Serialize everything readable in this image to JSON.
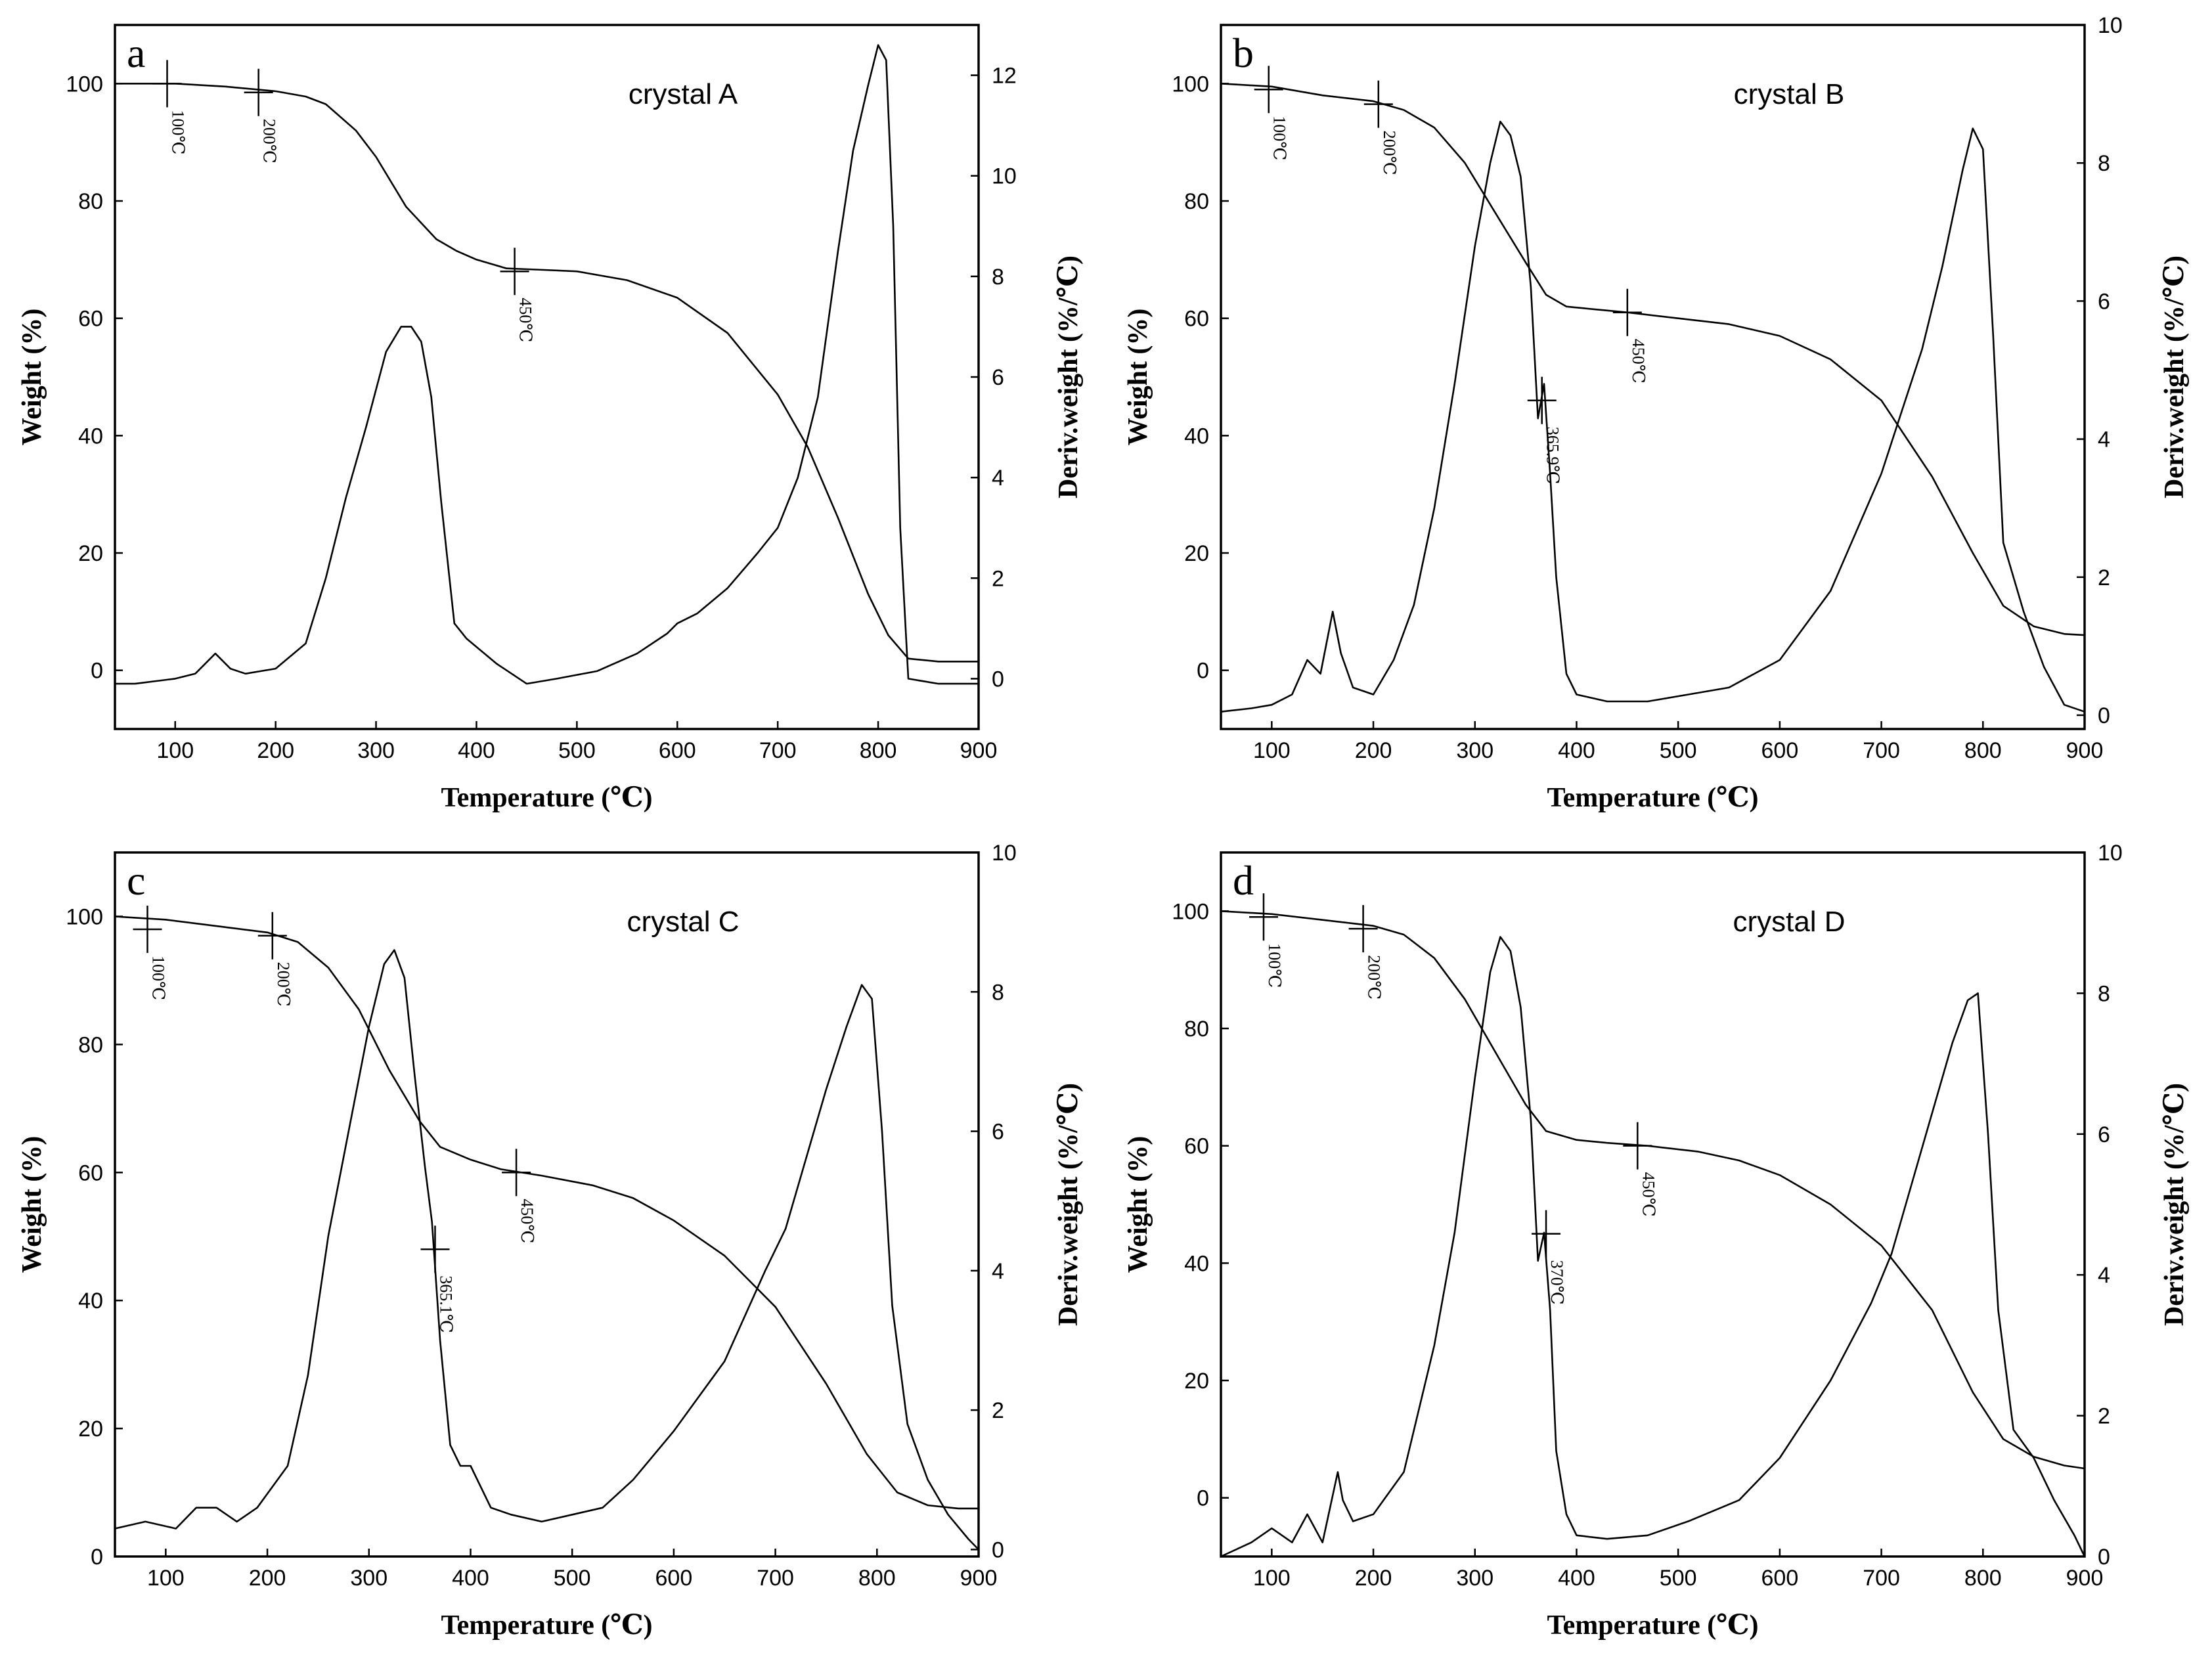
{
  "chart_data": [
    {
      "type": "line",
      "panel": "a",
      "label": "crystal A",
      "xlabel": "Temperature (℃)",
      "ylabel": "Weight (%)",
      "y2label": "Deriv.weight (%/℃)",
      "xlim": [
        40,
        900
      ],
      "ylim": [
        -10,
        110
      ],
      "y2lim": [
        -1,
        13
      ],
      "xticks": [
        100,
        200,
        300,
        400,
        500,
        600,
        700,
        800,
        900
      ],
      "yticks": [
        0,
        20,
        40,
        60,
        80,
        100
      ],
      "y2ticks": [
        0,
        2,
        4,
        6,
        8,
        10,
        12
      ],
      "annotations": [
        {
          "x": 92,
          "y": 100,
          "label": "100℃"
        },
        {
          "x": 183,
          "y": 98.5,
          "label": "200℃"
        },
        {
          "x": 438,
          "y": 68,
          "label": "450℃"
        }
      ],
      "series": [
        {
          "name": "Weight",
          "axis": "left",
          "x": [
            40,
            100,
            150,
            200,
            230,
            250,
            280,
            300,
            330,
            360,
            380,
            400,
            430,
            460,
            500,
            550,
            600,
            650,
            700,
            730,
            760,
            790,
            810,
            830,
            860,
            900
          ],
          "y": [
            100,
            100,
            99.5,
            98.7,
            97.8,
            96.5,
            92,
            87.5,
            79,
            73.5,
            71.5,
            70,
            68.5,
            68.3,
            68,
            66.5,
            63.5,
            57.5,
            47,
            38,
            26,
            13,
            6,
            2,
            1.5,
            1.5
          ]
        },
        {
          "name": "Deriv. weight",
          "axis": "right",
          "x": [
            40,
            60,
            100,
            120,
            140,
            155,
            170,
            200,
            230,
            250,
            270,
            290,
            310,
            325,
            335,
            345,
            355,
            365,
            378,
            390,
            420,
            450,
            480,
            520,
            560,
            590,
            600,
            620,
            650,
            680,
            700,
            720,
            740,
            760,
            775,
            790,
            800,
            808,
            815,
            822,
            830,
            860,
            900
          ],
          "y": [
            -0.1,
            -0.1,
            0,
            0.1,
            0.5,
            0.2,
            0.1,
            0.2,
            0.7,
            2,
            3.6,
            5,
            6.5,
            7,
            7,
            6.7,
            5.6,
            3.5,
            1.1,
            0.8,
            0.3,
            -0.1,
            0,
            0.15,
            0.5,
            0.9,
            1.1,
            1.3,
            1.8,
            2.5,
            3,
            4,
            5.6,
            8.5,
            10.5,
            11.8,
            12.6,
            12.3,
            9,
            3,
            0,
            -0.1,
            -0.1
          ]
        }
      ]
    },
    {
      "type": "line",
      "panel": "b",
      "label": "crystal B",
      "xlabel": "Temperature (℃)",
      "ylabel": "Weight (%)",
      "y2label": "Deriv.weight (%/℃)",
      "xlim": [
        50,
        900
      ],
      "ylim": [
        -10,
        110
      ],
      "y2lim": [
        -0.2,
        10
      ],
      "xticks": [
        100,
        200,
        300,
        400,
        500,
        600,
        700,
        800,
        900
      ],
      "yticks": [
        0,
        20,
        40,
        60,
        80,
        100
      ],
      "y2ticks": [
        0,
        2,
        4,
        6,
        8,
        10
      ],
      "annotations": [
        {
          "x": 97,
          "y": 99,
          "label": "100℃"
        },
        {
          "x": 205,
          "y": 96.5,
          "label": "200℃"
        },
        {
          "x": 365.9,
          "y": 46,
          "label": "365.9℃"
        },
        {
          "x": 450,
          "y": 61,
          "label": "450℃"
        }
      ],
      "series": [
        {
          "name": "Weight",
          "axis": "left",
          "x": [
            50,
            100,
            150,
            200,
            230,
            260,
            290,
            320,
            350,
            370,
            390,
            420,
            450,
            500,
            550,
            600,
            650,
            700,
            750,
            790,
            820,
            850,
            880,
            900
          ],
          "y": [
            100,
            99.5,
            98,
            97,
            95.5,
            92.5,
            86.5,
            78,
            69.5,
            64,
            62,
            61.5,
            61,
            60,
            59,
            57,
            53,
            46,
            33,
            20,
            11,
            7.5,
            6.2,
            6
          ]
        },
        {
          "name": "Deriv. weight",
          "axis": "right",
          "x": [
            50,
            80,
            100,
            120,
            135,
            148,
            160,
            168,
            180,
            200,
            220,
            240,
            260,
            280,
            300,
            315,
            325,
            335,
            345,
            355,
            362,
            368,
            374,
            380,
            390,
            400,
            430,
            470,
            510,
            550,
            600,
            650,
            700,
            720,
            740,
            760,
            780,
            790,
            800,
            810,
            820,
            840,
            860,
            880,
            900
          ],
          "y": [
            0.05,
            0.1,
            0.15,
            0.3,
            0.8,
            0.6,
            1.5,
            0.9,
            0.4,
            0.3,
            0.8,
            1.6,
            3,
            4.8,
            6.8,
            8,
            8.6,
            8.4,
            7.8,
            6.2,
            4.3,
            4.8,
            3.5,
            2,
            0.6,
            0.3,
            0.2,
            0.2,
            0.3,
            0.4,
            0.8,
            1.8,
            3.5,
            4.4,
            5.3,
            6.5,
            7.9,
            8.5,
            8.2,
            5.5,
            2.5,
            1.5,
            0.7,
            0.15,
            0.05
          ]
        }
      ]
    },
    {
      "type": "line",
      "panel": "c",
      "label": "crystal C",
      "xlabel": "Temperature (℃)",
      "ylabel": "Weight (%)",
      "y2label": "Deriv.weight (%/℃)",
      "xlim": [
        50,
        900
      ],
      "ylim": [
        0,
        110
      ],
      "y2lim": [
        -0.1,
        10
      ],
      "xticks": [
        100,
        200,
        300,
        400,
        500,
        600,
        700,
        800,
        900
      ],
      "yticks": [
        0,
        20,
        40,
        60,
        80,
        100
      ],
      "y2ticks": [
        0,
        2,
        4,
        6,
        8,
        10
      ],
      "annotations": [
        {
          "x": 82,
          "y": 98,
          "label": "100℃"
        },
        {
          "x": 205,
          "y": 97,
          "label": "200℃"
        },
        {
          "x": 365.1,
          "y": 48,
          "label": "365.1℃"
        },
        {
          "x": 445,
          "y": 60,
          "label": "450℃"
        }
      ],
      "series": [
        {
          "name": "Weight",
          "axis": "left",
          "x": [
            50,
            100,
            150,
            200,
            230,
            260,
            290,
            320,
            350,
            370,
            400,
            430,
            470,
            520,
            560,
            600,
            650,
            700,
            750,
            790,
            820,
            850,
            880,
            900
          ],
          "y": [
            100,
            99.5,
            98.5,
            97.5,
            96,
            92,
            85.5,
            76,
            68,
            64,
            62,
            60.5,
            59.5,
            58,
            56,
            52.5,
            47,
            39,
            27,
            16,
            10,
            8,
            7.5,
            7.5
          ]
        },
        {
          "name": "Deriv. weight",
          "axis": "right",
          "x": [
            50,
            80,
            110,
            130,
            150,
            170,
            190,
            220,
            240,
            260,
            280,
            300,
            315,
            325,
            335,
            345,
            355,
            362,
            370,
            380,
            390,
            400,
            420,
            440,
            470,
            500,
            530,
            560,
            600,
            650,
            690,
            710,
            730,
            750,
            770,
            785,
            795,
            805,
            815,
            830,
            850,
            870,
            890,
            900
          ],
          "y": [
            0.3,
            0.4,
            0.3,
            0.6,
            0.6,
            0.4,
            0.6,
            1.2,
            2.5,
            4.5,
            6,
            7.5,
            8.4,
            8.6,
            8.2,
            6.8,
            5.5,
            4.7,
            3,
            1.5,
            1.2,
            1.2,
            0.6,
            0.5,
            0.4,
            0.5,
            0.6,
            1,
            1.7,
            2.7,
            4,
            4.6,
            5.6,
            6.6,
            7.5,
            8.1,
            7.9,
            6,
            3.5,
            1.8,
            1,
            0.5,
            0.15,
            0
          ]
        }
      ]
    },
    {
      "type": "line",
      "panel": "d",
      "label": "crystal D",
      "xlabel": "Temperature (℃)",
      "ylabel": "Weight (%)",
      "y2label": "Deriv.weight (%/℃)",
      "xlim": [
        50,
        900
      ],
      "ylim": [
        -10,
        110
      ],
      "y2lim": [
        0,
        10
      ],
      "xticks": [
        100,
        200,
        300,
        400,
        500,
        600,
        700,
        800,
        900
      ],
      "yticks": [
        0,
        20,
        40,
        60,
        80,
        100
      ],
      "y2ticks": [
        0,
        2,
        4,
        6,
        8,
        10
      ],
      "annotations": [
        {
          "x": 92,
          "y": 99,
          "label": "100℃"
        },
        {
          "x": 190,
          "y": 97,
          "label": "200℃"
        },
        {
          "x": 370,
          "y": 45,
          "label": "370℃"
        },
        {
          "x": 460,
          "y": 60,
          "label": "450℃"
        }
      ],
      "series": [
        {
          "name": "Weight",
          "axis": "left",
          "x": [
            50,
            100,
            150,
            200,
            230,
            260,
            290,
            320,
            350,
            370,
            400,
            430,
            470,
            520,
            560,
            600,
            650,
            700,
            750,
            790,
            820,
            850,
            880,
            900
          ],
          "y": [
            100,
            99.5,
            98.5,
            97.5,
            96,
            92,
            85,
            76,
            67,
            62.5,
            61,
            60.5,
            60,
            59,
            57.5,
            55,
            50,
            43,
            32,
            18,
            10,
            7,
            5.5,
            5
          ]
        },
        {
          "name": "Deriv. weight",
          "axis": "right",
          "x": [
            50,
            80,
            100,
            120,
            135,
            150,
            165,
            170,
            180,
            200,
            230,
            260,
            280,
            300,
            315,
            325,
            335,
            345,
            355,
            362,
            368,
            374,
            380,
            390,
            400,
            430,
            470,
            510,
            560,
            600,
            650,
            690,
            710,
            730,
            750,
            770,
            785,
            795,
            805,
            815,
            830,
            850,
            870,
            890,
            900
          ],
          "y": [
            0,
            0.2,
            0.4,
            0.2,
            0.6,
            0.2,
            1.2,
            0.8,
            0.5,
            0.6,
            1.2,
            3,
            4.6,
            6.8,
            8.3,
            8.8,
            8.6,
            7.8,
            6.2,
            4.2,
            4.6,
            3.5,
            1.5,
            0.6,
            0.3,
            0.25,
            0.3,
            0.5,
            0.8,
            1.4,
            2.5,
            3.6,
            4.3,
            5.3,
            6.3,
            7.3,
            7.9,
            8,
            6,
            3.5,
            1.8,
            1.4,
            0.8,
            0.3,
            0
          ]
        }
      ]
    }
  ]
}
